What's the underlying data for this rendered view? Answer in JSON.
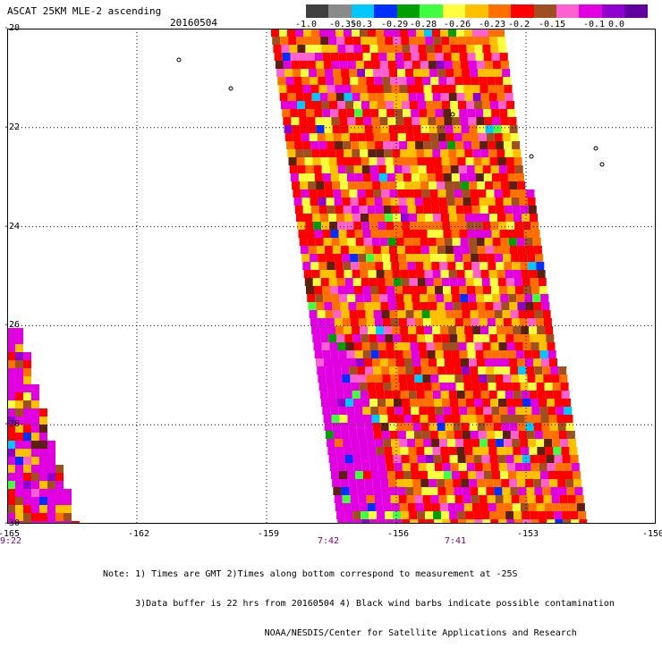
{
  "header": {
    "title": "ASCAT 25KM MLE-2 ascending",
    "date": "20160504"
  },
  "legend": {
    "colors": [
      "#404040",
      "#8a8a8a",
      "#00c8ff",
      "#0030ff",
      "#00a000",
      "#40ff40",
      "#ffff40",
      "#ffc000",
      "#ff7000",
      "#ff0000",
      "#a05020",
      "#ff60d0",
      "#e000e0",
      "#9000d0",
      "#6000a0"
    ],
    "labels": [
      "-1.0",
      "-0.35",
      "-0.3",
      "-0.29",
      "-0.28",
      "-0.26",
      "-0.23",
      "-0.2",
      "-0.15",
      "-0.1",
      "0.0"
    ]
  },
  "axes": {
    "lat_labels": [
      "-20",
      "-22",
      "-24",
      "-26",
      "-28",
      "-30"
    ],
    "lon_labels": [
      "-165",
      "-162",
      "-159",
      "-156",
      "-153",
      "-150"
    ]
  },
  "time_labels": [
    "9:22",
    "7:42",
    "7:41"
  ],
  "notes": [
    "Note: 1) Times are GMT 2)Times along bottom correspond to measurement at -25S",
    "      3)Data buffer is 22 hrs from 20160504 4) Black wind barbs indicate possible contamination",
    "                              NOAA/NESDIS/Center for Satellite Applications and Research"
  ],
  "map": {
    "lat_range": [
      -30,
      -20
    ],
    "lon_range": [
      -165,
      -150
    ],
    "palette": [
      "#ff0000",
      "#ff7000",
      "#ffc000",
      "#ffff40",
      "#e000e0",
      "#ff60d0",
      "#a05020",
      "#5a2010",
      "#00a000",
      "#40ff40",
      "#00c8ff",
      "#0030ff",
      "#9000d0"
    ]
  }
}
